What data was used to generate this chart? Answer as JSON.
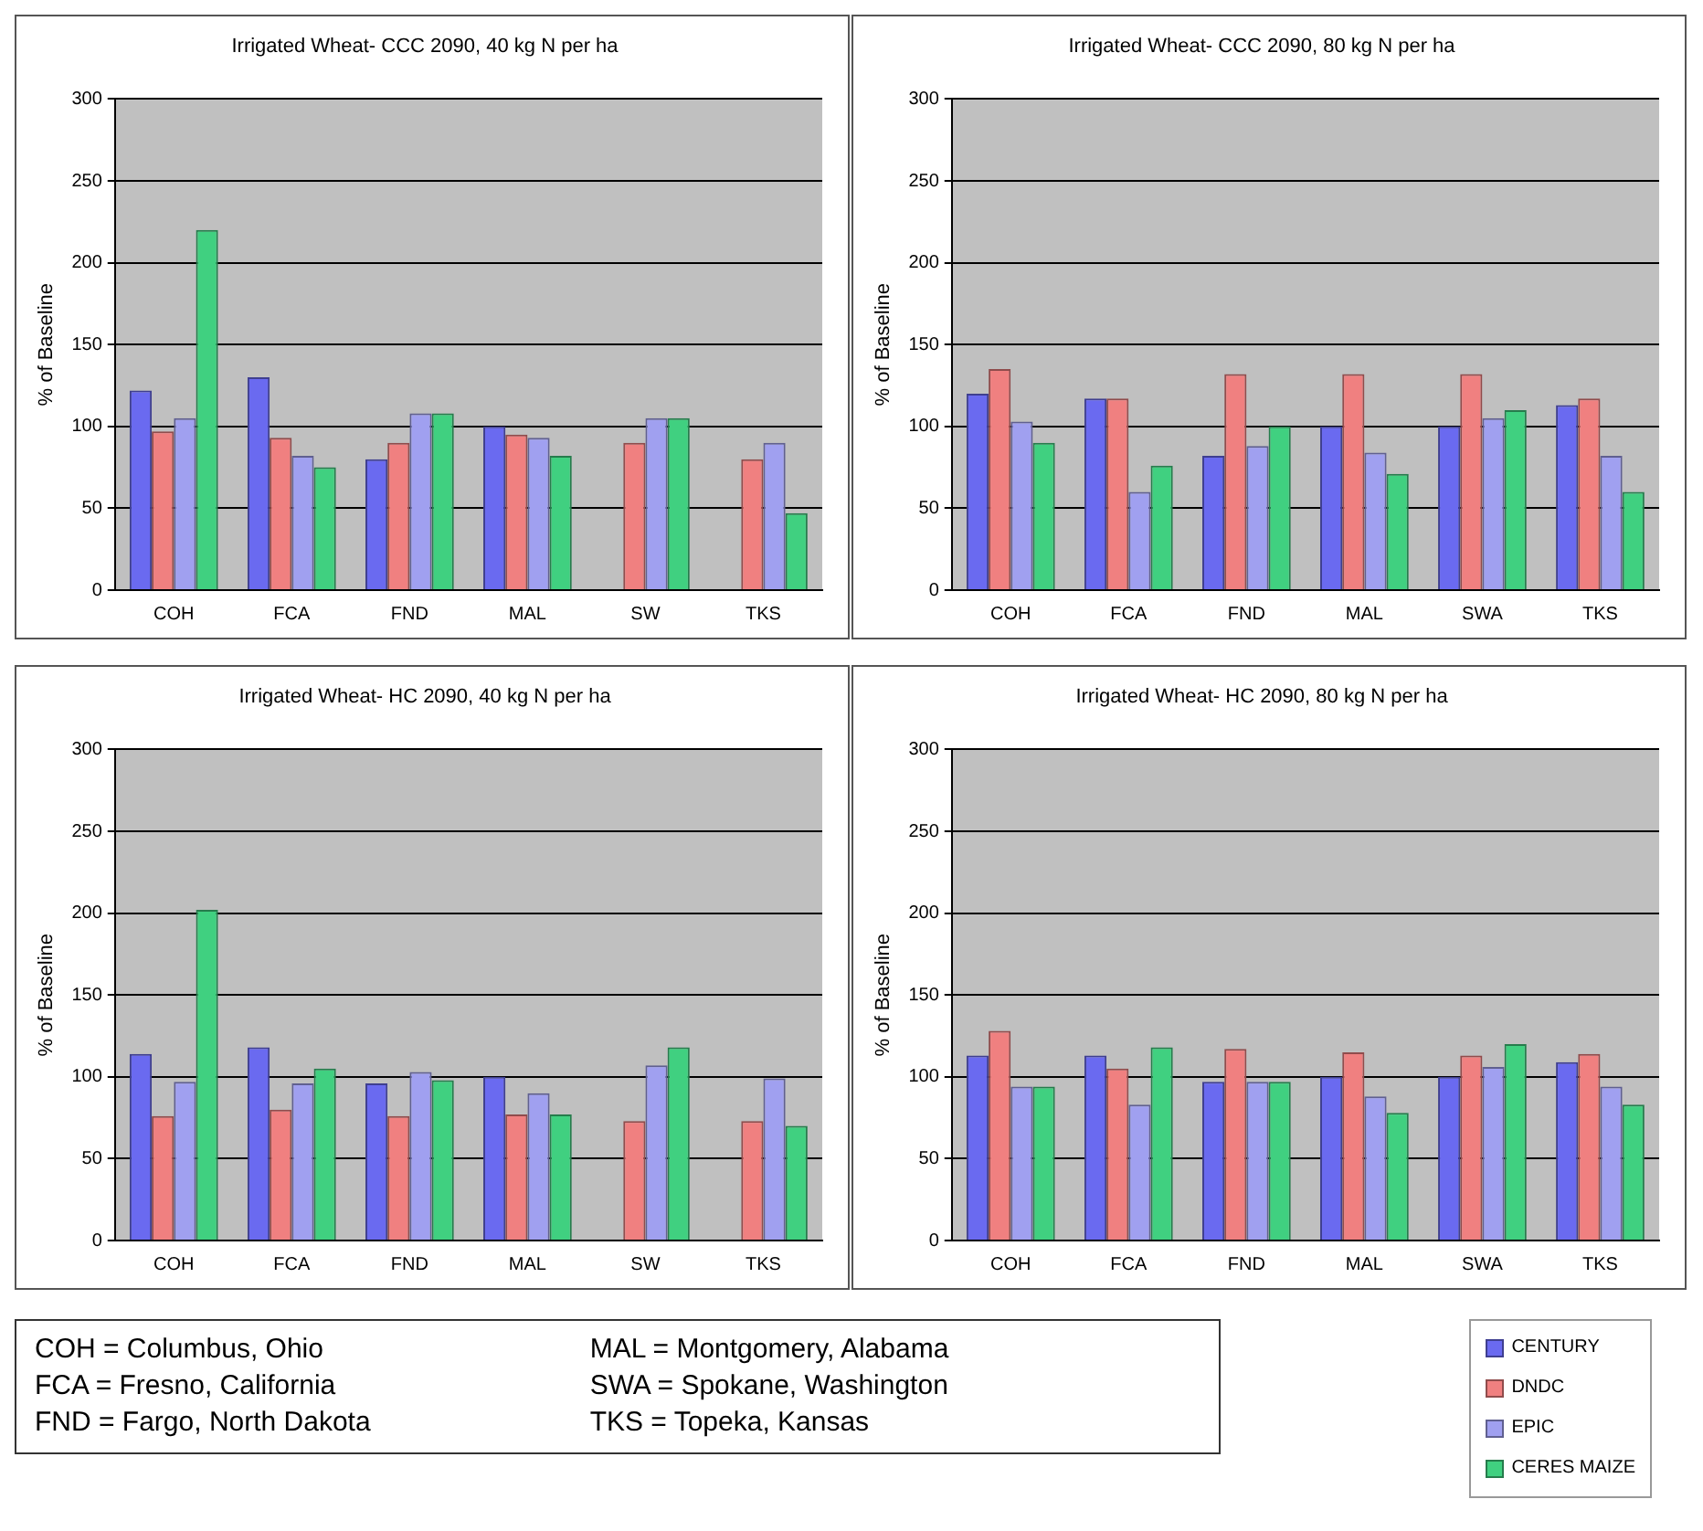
{
  "chart_data": [
    {
      "type": "bar",
      "title": "Irrigated Wheat- CCC 2090, 40 kg N per ha",
      "ylabel": "% of Baseline",
      "categories": [
        "COH",
        "FCA",
        "FND",
        "MAL",
        "SW",
        "TKS"
      ],
      "ylim": [
        0,
        300
      ],
      "yticks": [
        0,
        50,
        100,
        150,
        200,
        250,
        300
      ],
      "grid": "y",
      "series": [
        {
          "color": "#6a6af0",
          "values": [
            122,
            130,
            80,
            100,
            null,
            null
          ]
        },
        {
          "color": "#f08080",
          "values": [
            97,
            93,
            90,
            95,
            90,
            80
          ]
        },
        {
          "color": "#a0a0f0",
          "values": [
            105,
            82,
            108,
            93,
            105,
            90
          ]
        },
        {
          "color": "#40d080",
          "values": [
            220,
            75,
            108,
            82,
            105,
            47
          ]
        }
      ]
    },
    {
      "type": "bar",
      "title": "Irrigated Wheat- CCC 2090, 80 kg N per ha",
      "ylabel": "% of Baseline",
      "categories": [
        "COH",
        "FCA",
        "FND",
        "MAL",
        "SWA",
        "TKS"
      ],
      "ylim": [
        0,
        300
      ],
      "yticks": [
        0,
        50,
        100,
        150,
        200,
        250,
        300
      ],
      "grid": "y",
      "series": [
        {
          "color": "#6a6af0",
          "values": [
            120,
            117,
            82,
            100,
            100,
            113
          ]
        },
        {
          "color": "#f08080",
          "values": [
            135,
            117,
            132,
            132,
            132,
            117
          ]
        },
        {
          "color": "#a0a0f0",
          "values": [
            103,
            60,
            88,
            84,
            105,
            82
          ]
        },
        {
          "color": "#40d080",
          "values": [
            90,
            76,
            100,
            71,
            110,
            60
          ]
        }
      ]
    },
    {
      "type": "bar",
      "title": "Irrigated Wheat- HC 2090, 40 kg N per ha",
      "ylabel": "% of Baseline",
      "categories": [
        "COH",
        "FCA",
        "FND",
        "MAL",
        "SW",
        "TKS"
      ],
      "ylim": [
        0,
        300
      ],
      "yticks": [
        0,
        50,
        100,
        150,
        200,
        250,
        300
      ],
      "grid": "y",
      "series": [
        {
          "color": "#6a6af0",
          "values": [
            114,
            118,
            96,
            100,
            null,
            null
          ]
        },
        {
          "color": "#f08080",
          "values": [
            76,
            80,
            76,
            77,
            73,
            73
          ]
        },
        {
          "color": "#a0a0f0",
          "values": [
            97,
            96,
            103,
            90,
            107,
            99
          ]
        },
        {
          "color": "#40d080",
          "values": [
            202,
            105,
            98,
            77,
            118,
            70
          ]
        }
      ]
    },
    {
      "type": "bar",
      "title": "Irrigated Wheat- HC 2090, 80 kg N per ha",
      "ylabel": "% of Baseline",
      "categories": [
        "COH",
        "FCA",
        "FND",
        "MAL",
        "SWA",
        "TKS"
      ],
      "ylim": [
        0,
        300
      ],
      "yticks": [
        0,
        50,
        100,
        150,
        200,
        250,
        300
      ],
      "grid": "y",
      "legend": "bottom right",
      "series": [
        {
          "name": "CENTURY",
          "color": "#6a6af0",
          "values": [
            113,
            113,
            97,
            100,
            100,
            109
          ]
        },
        {
          "name": "DNDC",
          "color": "#f08080",
          "values": [
            128,
            105,
            117,
            115,
            113,
            114
          ]
        },
        {
          "name": "EPIC",
          "color": "#a0a0f0",
          "values": [
            94,
            83,
            97,
            88,
            106,
            94
          ]
        },
        {
          "name": "CERES MAIZE",
          "color": "#40d080",
          "values": [
            94,
            118,
            97,
            78,
            120,
            83
          ]
        }
      ]
    },
    {
      "type": "other",
      "annotations": [
        "COH = Columbus, Ohio",
        "FCA = Fresno, California",
        "FND = Fargo, North Dakota",
        "MAL = Montgomery, Alabama",
        "SWA = Spokane, Washington",
        "TKS = Topeka, Kansas"
      ]
    }
  ]
}
